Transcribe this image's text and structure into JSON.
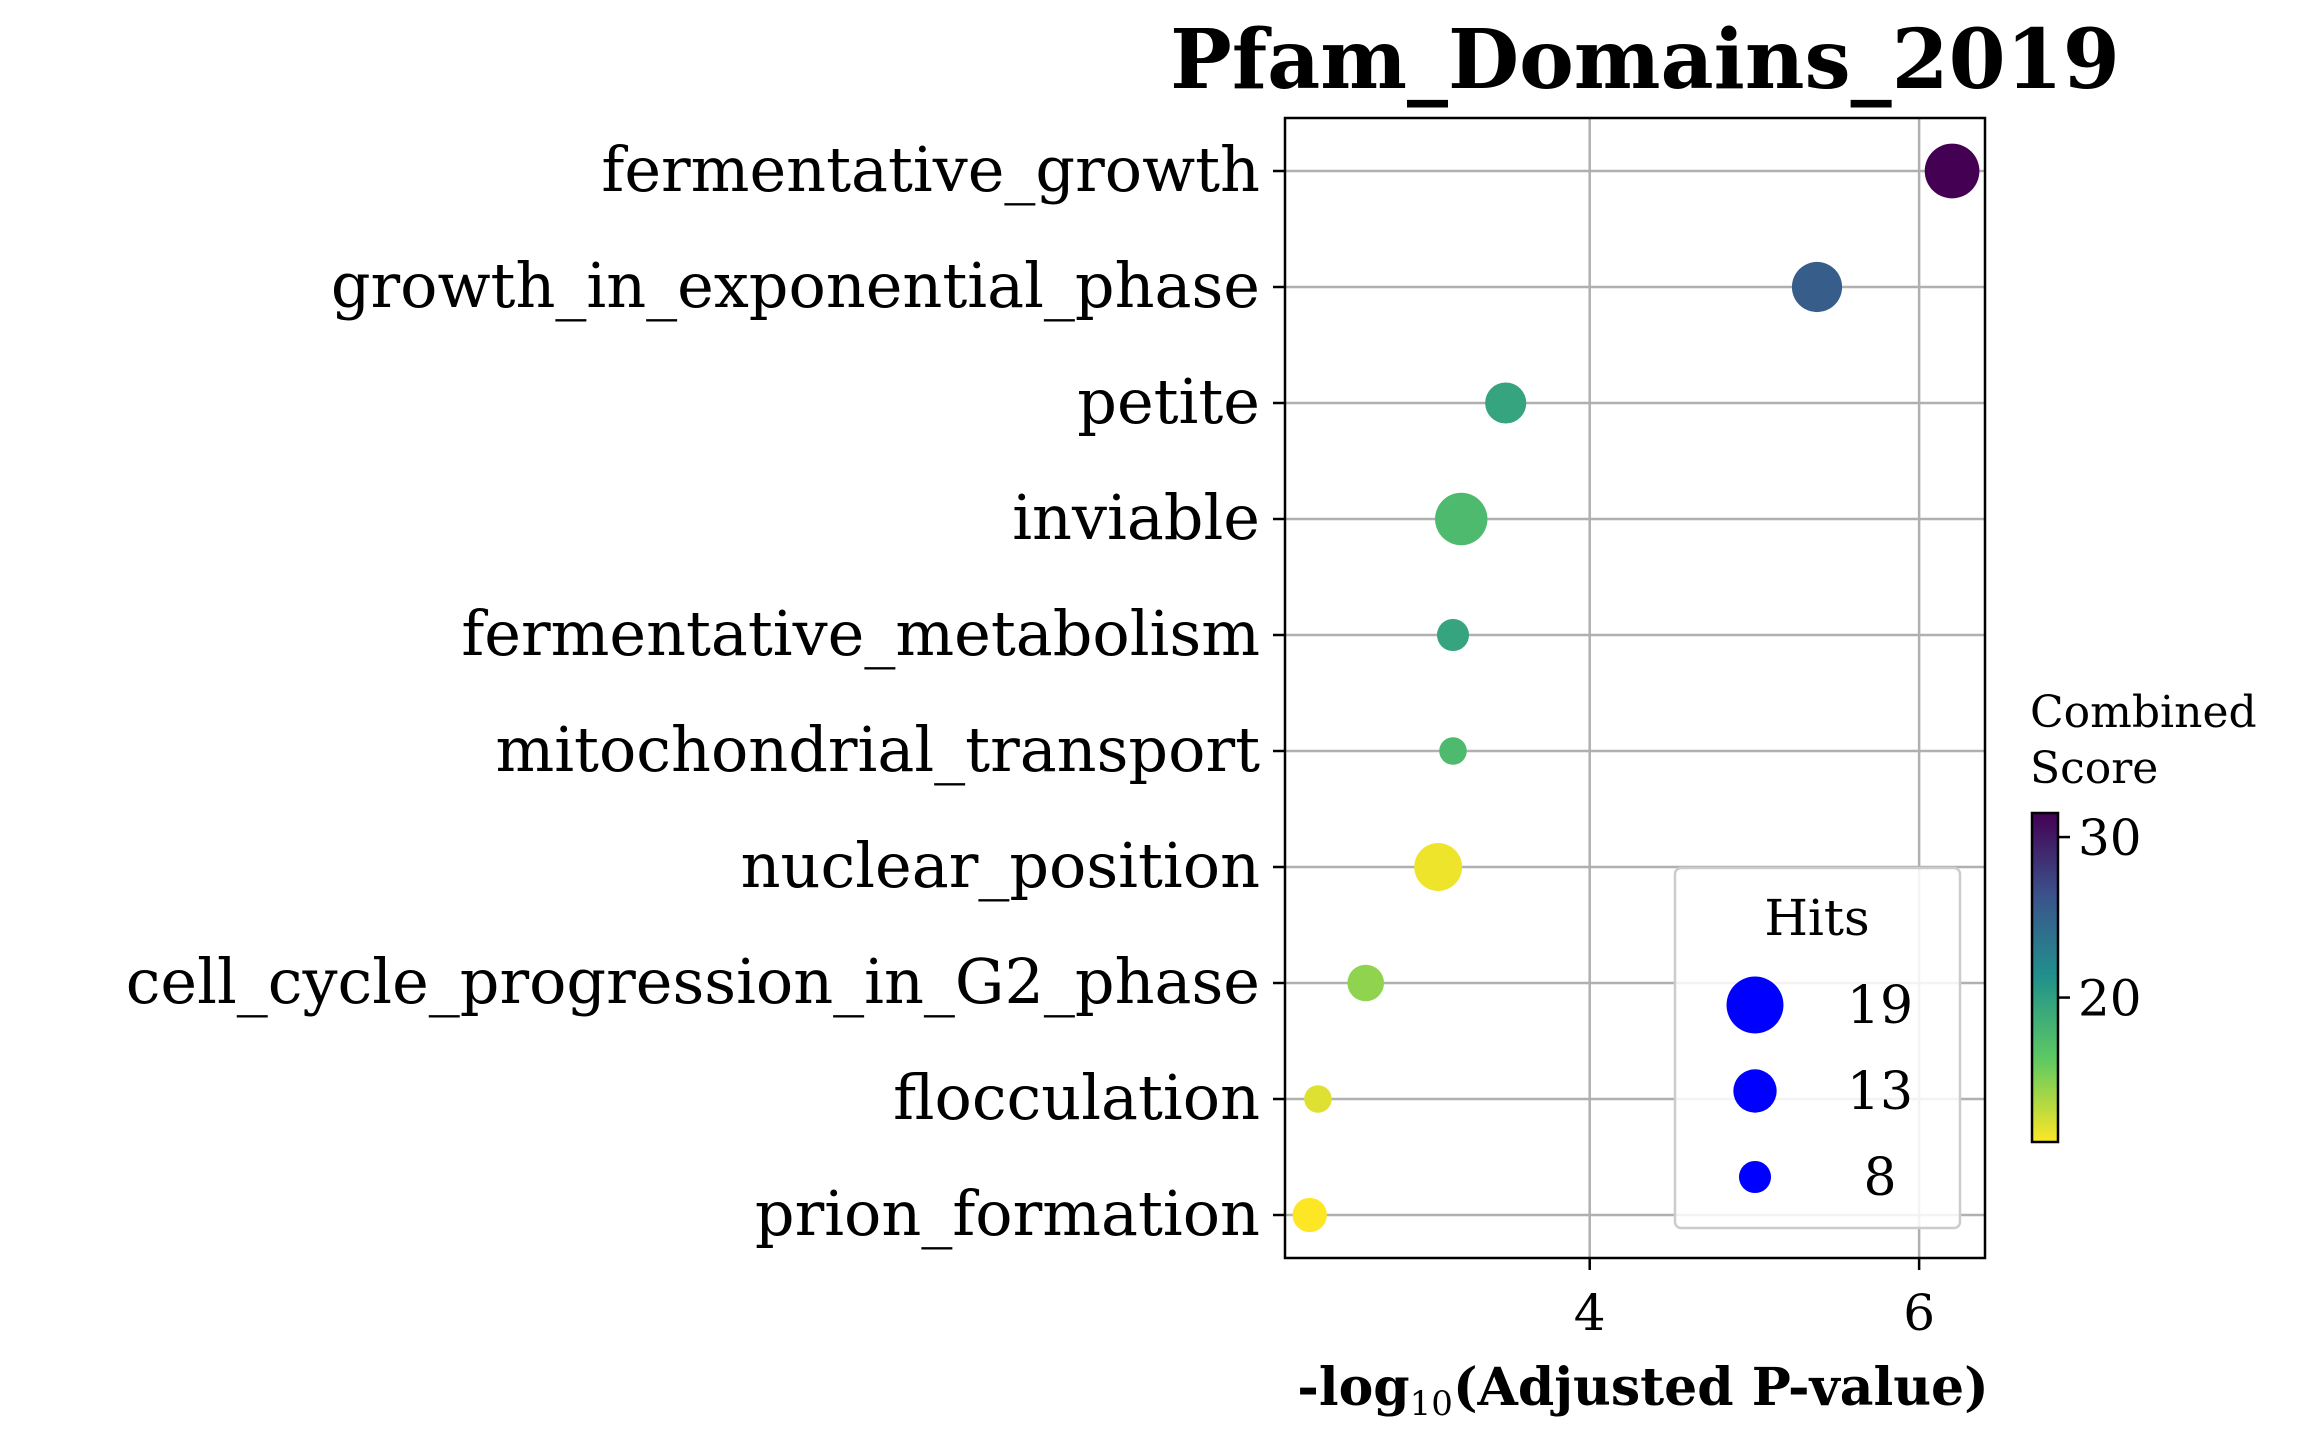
{
  "chart_data": {
    "type": "scatter",
    "title": "Pfam_Domains_2019",
    "xlabel": {
      "prefix": "-log",
      "subscript": "10",
      "suffix": "(Adjusted P-value)"
    },
    "ylabel": "",
    "xlim": [
      2.15,
      6.4
    ],
    "xticks": [
      4,
      6
    ],
    "grid": true,
    "points": [
      {
        "term": "fermentative_growth",
        "x": 6.2,
        "hits": 18,
        "score": 31.5
      },
      {
        "term": "growth_in_exponential_phase",
        "x": 5.38,
        "hits": 16,
        "score": 25.5
      },
      {
        "term": "petite",
        "x": 3.49,
        "hits": 12,
        "score": 19.5
      },
      {
        "term": "inviable",
        "x": 3.22,
        "hits": 17,
        "score": 17.5
      },
      {
        "term": "fermentative_metabolism",
        "x": 3.17,
        "hits": 8,
        "score": 19.5
      },
      {
        "term": "mitochondrial_transport",
        "x": 3.17,
        "hits": 6,
        "score": 17.5
      },
      {
        "term": "nuclear_position",
        "x": 3.08,
        "hits": 15,
        "score": 11.5
      },
      {
        "term": "cell_cycle_progression_in_G2_phase",
        "x": 2.64,
        "hits": 10,
        "score": 14.5
      },
      {
        "term": "flocculation",
        "x": 2.35,
        "hits": 6,
        "score": 12.0
      },
      {
        "term": "prion_formation",
        "x": 2.3,
        "hits": 9,
        "score": 11.0
      }
    ],
    "size_legend": {
      "title": "Hits",
      "entries": [
        19,
        13,
        8
      ],
      "color": "#0000ff"
    },
    "colorbar": {
      "title": [
        "Combined",
        "Score"
      ],
      "ticks": [
        20,
        30
      ],
      "range": [
        11,
        31.5
      ],
      "colormap": "viridis_r"
    },
    "legend_placement": "lower-right"
  }
}
